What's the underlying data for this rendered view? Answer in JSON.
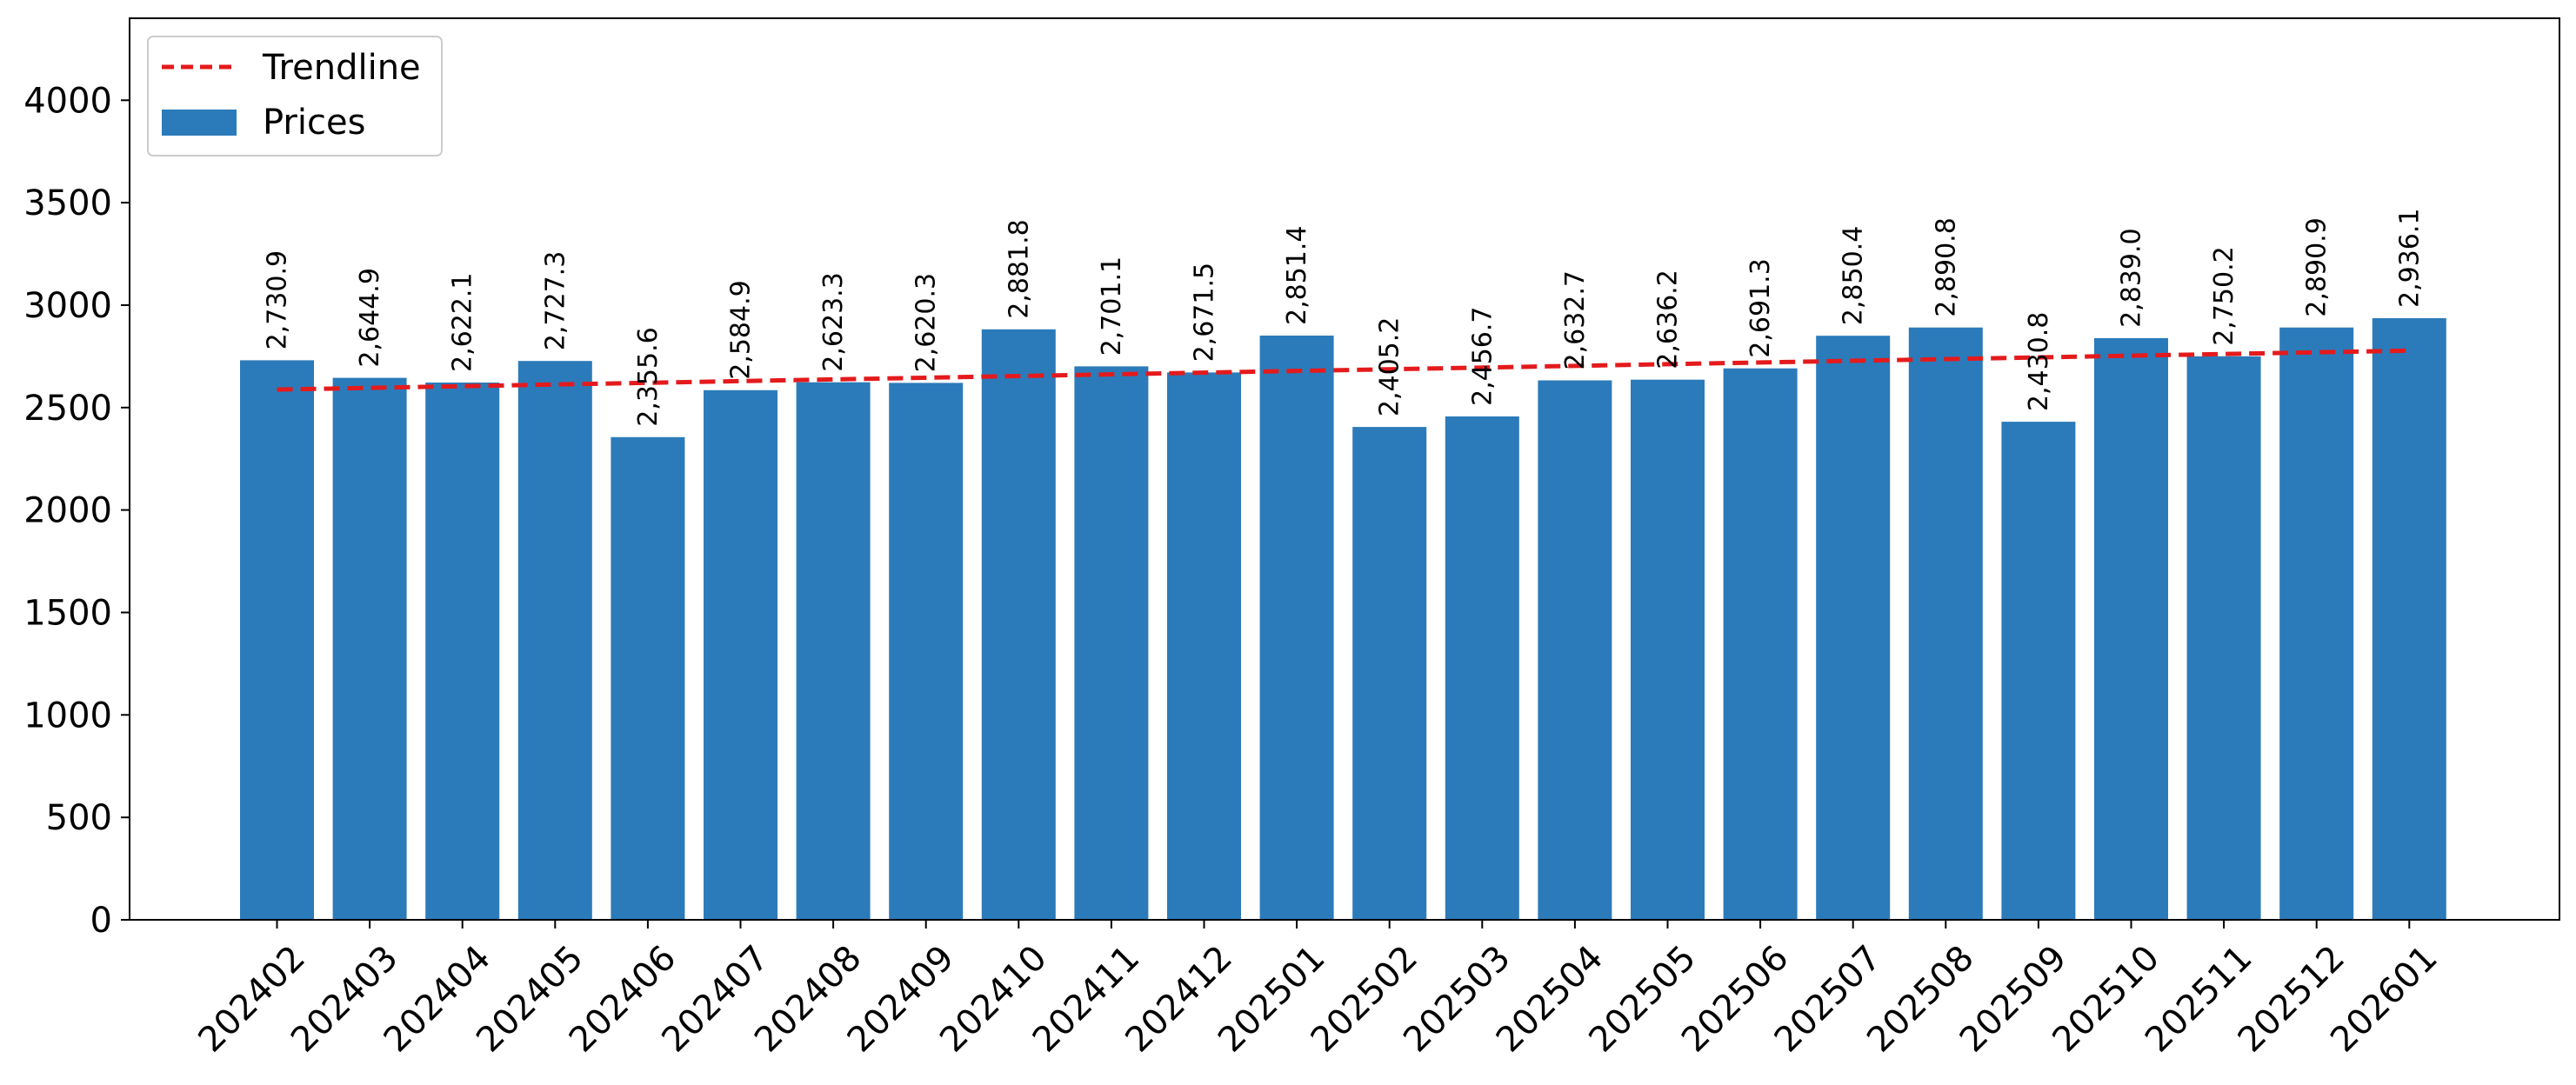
{
  "chart_data": {
    "type": "bar",
    "categories": [
      "202402",
      "202403",
      "202404",
      "202405",
      "202406",
      "202407",
      "202408",
      "202409",
      "202410",
      "202411",
      "202412",
      "202501",
      "202502",
      "202503",
      "202504",
      "202505",
      "202506",
      "202507",
      "202508",
      "202509",
      "202510",
      "202511",
      "202512",
      "202601"
    ],
    "series": [
      {
        "name": "Prices",
        "type": "bar",
        "color": "#2b7bba",
        "values": [
          2730.9,
          2644.9,
          2622.1,
          2727.3,
          2355.6,
          2584.9,
          2623.3,
          2620.3,
          2881.8,
          2701.1,
          2671.5,
          2851.4,
          2405.2,
          2456.7,
          2632.7,
          2636.2,
          2691.3,
          2850.4,
          2890.8,
          2430.8,
          2839.0,
          2750.2,
          2890.9,
          2936.1
        ],
        "labels": [
          "2,730.9",
          "2,644.9",
          "2,622.1",
          "2,727.3",
          "2,355.6",
          "2,584.9",
          "2,623.3",
          "2,620.3",
          "2,881.8",
          "2,701.1",
          "2,671.5",
          "2,851.4",
          "2,405.2",
          "2,456.7",
          "2,632.7",
          "2,636.2",
          "2,691.3",
          "2,850.4",
          "2,890.8",
          "2,430.8",
          "2,839.0",
          "2,750.2",
          "2,890.9",
          "2,936.1"
        ]
      },
      {
        "name": "Trendline",
        "type": "line",
        "style": "dashed",
        "color": "#e41a1c",
        "start": 2588,
        "end": 2778
      }
    ],
    "y_ticks": [
      "0",
      "500",
      "1000",
      "1500",
      "2000",
      "2500",
      "3000",
      "3500",
      "4000"
    ],
    "ylim": [
      0,
      4400
    ],
    "legend": {
      "position": "top-left",
      "entries": [
        "Trendline",
        "Prices"
      ]
    },
    "grid": false,
    "title": "",
    "xlabel": "",
    "ylabel": ""
  }
}
